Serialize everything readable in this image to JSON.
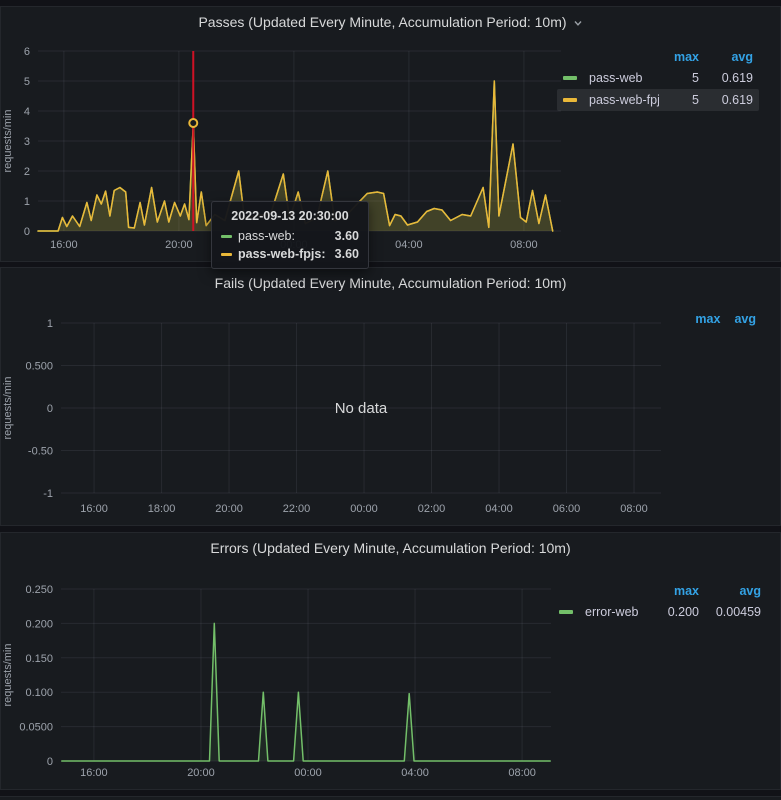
{
  "colors": {
    "page_bg": "#111217",
    "panel_bg": "#181b1f",
    "green": "#73bf69",
    "yellow": "#eab839",
    "blue_header": "#33a2e5",
    "crosshair_red": "#cf1125"
  },
  "panels": [
    {
      "title": "Passes (Updated Every Minute, Accumulation Period: 10m)",
      "legend": {
        "columns": {
          "max": "max",
          "avg": "avg"
        },
        "rows": [
          {
            "name": "pass-web",
            "color": "#73bf69",
            "max": "5",
            "avg": "0.619"
          },
          {
            "name": "pass-web-fpjs",
            "color": "#eab839",
            "max": "5",
            "avg": "0.619"
          }
        ]
      },
      "tooltip": {
        "time": "2022-09-13 20:30:00",
        "rows": [
          {
            "name": "pass-web:",
            "value": "3.60",
            "color": "#73bf69"
          },
          {
            "name": "pass-web-fpjs:",
            "value": "3.60",
            "color": "#eab839"
          }
        ]
      }
    },
    {
      "title": "Fails (Updated Every Minute, Accumulation Period: 10m)",
      "no_data": "No data",
      "legend": {
        "columns": {
          "max": "max",
          "avg": "avg"
        }
      }
    },
    {
      "title": "Errors (Updated Every Minute, Accumulation Period: 10m)",
      "legend": {
        "columns": {
          "max": "max",
          "avg": "avg"
        },
        "rows": [
          {
            "name": "error-web",
            "color": "#73bf69",
            "max": "0.200",
            "avg": "0.00459"
          }
        ]
      }
    }
  ],
  "chart_data": [
    {
      "type": "line",
      "title": "Passes (Updated Every Minute, Accumulation Period: 10m)",
      "ylabel": "requests/min",
      "xlabel": "",
      "grid": true,
      "legend_position": "right",
      "xlim": [
        15.1,
        33.29
      ],
      "ylim": [
        0,
        6
      ],
      "x_ticks": [
        {
          "v": 16,
          "label": "16:00"
        },
        {
          "v": 20,
          "label": "20:00"
        },
        {
          "v": 24,
          "label": "00:00"
        },
        {
          "v": 28,
          "label": "04:00"
        },
        {
          "v": 32,
          "label": "08:00"
        }
      ],
      "y_ticks": [
        {
          "v": 0,
          "label": "0"
        },
        {
          "v": 1,
          "label": "1"
        },
        {
          "v": 2,
          "label": "2"
        },
        {
          "v": 3,
          "label": "3"
        },
        {
          "v": 4,
          "label": "4"
        },
        {
          "v": 5,
          "label": "5"
        },
        {
          "v": 6,
          "label": "6"
        }
      ],
      "crosshair": {
        "x": 20.5,
        "color": "#cf1125"
      },
      "marker": {
        "x": 20.5,
        "y": 3.6,
        "color": "#eab839"
      },
      "series": [
        {
          "name": "pass-web",
          "color": "#73bf69",
          "fill_opacity": 0.1,
          "max": 5,
          "avg": 0.619,
          "points": "shared"
        },
        {
          "name": "pass-web-fpjs",
          "color": "#eab839",
          "fill_opacity": 0.16,
          "max": 5,
          "avg": 0.619,
          "points": "shared"
        }
      ],
      "shared_points": [
        [
          15.1,
          0
        ],
        [
          15.8,
          0
        ],
        [
          15.95,
          0.45
        ],
        [
          16.1,
          0.15
        ],
        [
          16.3,
          0.5
        ],
        [
          16.55,
          0.15
        ],
        [
          16.8,
          0.95
        ],
        [
          16.95,
          0.35
        ],
        [
          17.15,
          1.2
        ],
        [
          17.3,
          0.9
        ],
        [
          17.45,
          1.33
        ],
        [
          17.6,
          0.5
        ],
        [
          17.75,
          1.35
        ],
        [
          17.95,
          1.45
        ],
        [
          18.15,
          1.3
        ],
        [
          18.25,
          0.12
        ],
        [
          18.45,
          0.1
        ],
        [
          18.65,
          0.95
        ],
        [
          18.8,
          0.2
        ],
        [
          19.05,
          1.45
        ],
        [
          19.25,
          0.3
        ],
        [
          19.5,
          1.0
        ],
        [
          19.65,
          0.3
        ],
        [
          19.85,
          0.95
        ],
        [
          20.05,
          0.5
        ],
        [
          20.2,
          0.9
        ],
        [
          20.35,
          0.38
        ],
        [
          20.5,
          3.6
        ],
        [
          20.62,
          0.28
        ],
        [
          20.78,
          1.3
        ],
        [
          20.95,
          0.18
        ],
        [
          21.25,
          0.55
        ],
        [
          21.6,
          0.35
        ],
        [
          22.08,
          2.0
        ],
        [
          22.28,
          0.45
        ],
        [
          22.7,
          0.5
        ],
        [
          23.2,
          0.6
        ],
        [
          23.63,
          1.9
        ],
        [
          23.85,
          0.4
        ],
        [
          24.15,
          1.3
        ],
        [
          24.4,
          0.25
        ],
        [
          24.8,
          0.45
        ],
        [
          25.18,
          2.0
        ],
        [
          25.42,
          0.35
        ],
        [
          25.8,
          0.5
        ],
        [
          26.2,
          0.9
        ],
        [
          26.55,
          1.25
        ],
        [
          26.9,
          1.3
        ],
        [
          27.12,
          1.25
        ],
        [
          27.33,
          0.18
        ],
        [
          27.52,
          0.55
        ],
        [
          27.72,
          0.5
        ],
        [
          27.95,
          0.2
        ],
        [
          28.3,
          0.3
        ],
        [
          28.62,
          0.65
        ],
        [
          28.88,
          0.75
        ],
        [
          29.15,
          0.7
        ],
        [
          29.45,
          0.35
        ],
        [
          29.85,
          0.55
        ],
        [
          30.15,
          0.5
        ],
        [
          30.58,
          1.45
        ],
        [
          30.78,
          0.12
        ],
        [
          30.97,
          5.0
        ],
        [
          31.13,
          0.5
        ],
        [
          31.62,
          2.9
        ],
        [
          31.88,
          0.45
        ],
        [
          32.08,
          0.3
        ],
        [
          32.3,
          1.35
        ],
        [
          32.52,
          0.25
        ],
        [
          32.75,
          1.2
        ],
        [
          33.0,
          0
        ]
      ]
    },
    {
      "type": "line",
      "title": "Fails (Updated Every Minute, Accumulation Period: 10m)",
      "ylabel": "requests/min",
      "xlabel": "",
      "grid": true,
      "no_data": "No data",
      "xlim": [
        15.02,
        32.8
      ],
      "ylim": [
        -1,
        1
      ],
      "x_ticks": [
        {
          "v": 16,
          "label": "16:00"
        },
        {
          "v": 18,
          "label": "18:00"
        },
        {
          "v": 20,
          "label": "20:00"
        },
        {
          "v": 22,
          "label": "22:00"
        },
        {
          "v": 24,
          "label": "00:00"
        },
        {
          "v": 26,
          "label": "02:00"
        },
        {
          "v": 28,
          "label": "04:00"
        },
        {
          "v": 30,
          "label": "06:00"
        },
        {
          "v": 32,
          "label": "08:00"
        }
      ],
      "y_ticks": [
        {
          "v": -1,
          "label": "-1"
        },
        {
          "v": -0.5,
          "label": "-0.50"
        },
        {
          "v": 0,
          "label": "0"
        },
        {
          "v": 0.5,
          "label": "0.500"
        },
        {
          "v": 1,
          "label": "1"
        }
      ],
      "series": []
    },
    {
      "type": "line",
      "title": "Errors (Updated Every Minute, Accumulation Period: 10m)",
      "ylabel": "requests/min",
      "xlabel": "",
      "grid": true,
      "legend_position": "right",
      "xlim": [
        14.77,
        33.08
      ],
      "ylim": [
        0,
        0.25
      ],
      "x_ticks": [
        {
          "v": 16,
          "label": "16:00"
        },
        {
          "v": 20,
          "label": "20:00"
        },
        {
          "v": 24,
          "label": "00:00"
        },
        {
          "v": 28,
          "label": "04:00"
        },
        {
          "v": 32,
          "label": "08:00"
        }
      ],
      "y_ticks": [
        {
          "v": 0,
          "label": "0"
        },
        {
          "v": 0.05,
          "label": "0.0500"
        },
        {
          "v": 0.1,
          "label": "0.100"
        },
        {
          "v": 0.15,
          "label": "0.150"
        },
        {
          "v": 0.2,
          "label": "0.200"
        },
        {
          "v": 0.25,
          "label": "0.250"
        }
      ],
      "series": [
        {
          "name": "error-web",
          "color": "#73bf69",
          "fill_opacity": 0.09,
          "max": 0.2,
          "avg": 0.00459,
          "points": [
            [
              14.8,
              0
            ],
            [
              20.32,
              0
            ],
            [
              20.5,
              0.2
            ],
            [
              20.68,
              0
            ],
            [
              22.15,
              0
            ],
            [
              22.33,
              0.1
            ],
            [
              22.5,
              0
            ],
            [
              23.46,
              0
            ],
            [
              23.64,
              0.1
            ],
            [
              23.82,
              0
            ],
            [
              27.6,
              0
            ],
            [
              27.78,
              0.098
            ],
            [
              27.96,
              0
            ],
            [
              33.05,
              0
            ]
          ]
        }
      ]
    }
  ]
}
